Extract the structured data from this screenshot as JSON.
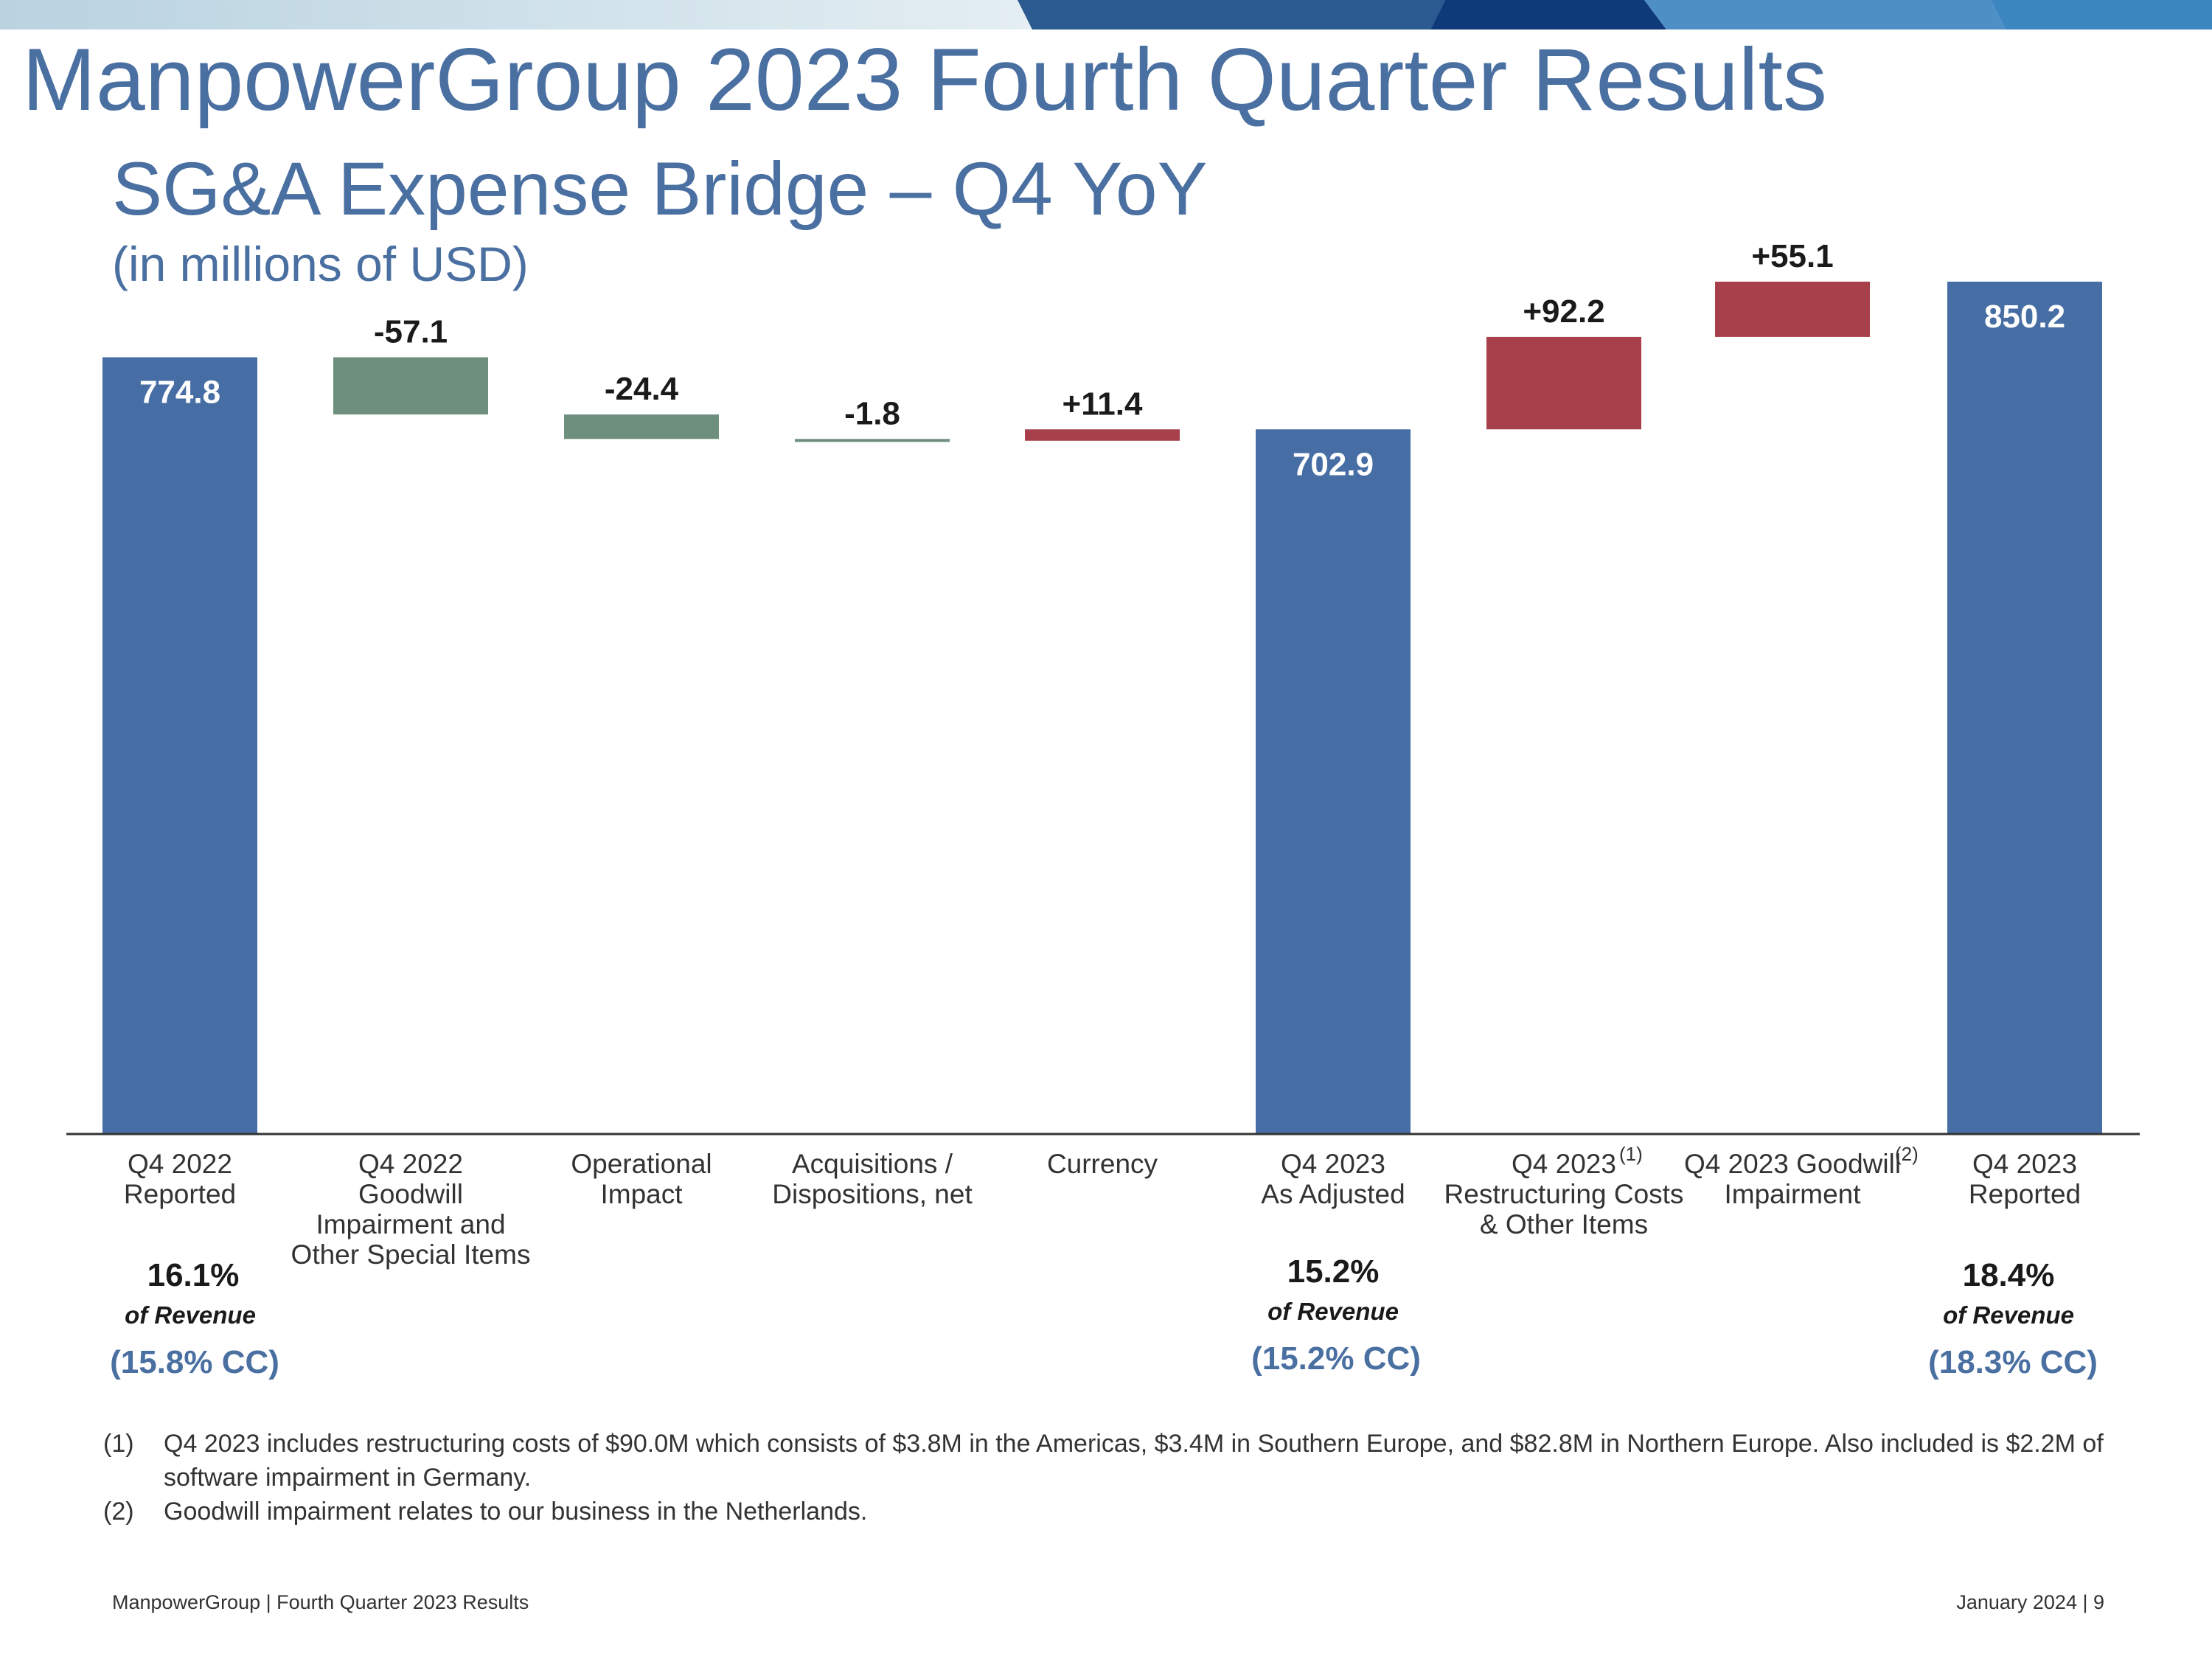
{
  "header": {
    "title": "ManpowerGroup 2023 Fourth Quarter Results",
    "subtitle": "SG&A Expense Bridge – Q4 YoY",
    "units": "(in millions of USD)"
  },
  "chart_data": {
    "type": "bar",
    "subtype": "waterfall",
    "categories": [
      "Q4 2022\nReported",
      "Q4 2022\nGoodwill\nImpairment and\nOther Special Items",
      "Operational\nImpact",
      "Acquisitions /\nDispositions, net",
      "Currency",
      "Q4 2023\nAs Adjusted",
      "Q4 2023\nRestructuring Costs\n& Other Items",
      "Q4 2023 Goodwill\nImpairment",
      "Q4 2023\nReported"
    ],
    "category_footnotes": [
      "",
      "",
      "",
      "",
      "",
      "",
      "(1)",
      "(2)",
      ""
    ],
    "values": [
      774.8,
      -57.1,
      -24.4,
      -1.8,
      11.4,
      702.9,
      92.2,
      55.1,
      850.2
    ],
    "value_labels": [
      "774.8",
      "-57.1",
      "-24.4",
      "-1.8",
      "+11.4",
      "702.9",
      "+92.2",
      "+55.1",
      "850.2"
    ],
    "kinds": [
      "total",
      "decrease",
      "decrease",
      "decrease",
      "increase",
      "total",
      "increase",
      "increase",
      "total"
    ],
    "colors": {
      "total": "#476ea4",
      "decrease": "#6e8e7e",
      "increase": "#a8404b"
    },
    "ylim": [
      0,
      850.2
    ],
    "grid": false,
    "legend": "none"
  },
  "revenue_notes": [
    {
      "category_index": 0,
      "percent": "16.1%",
      "label": "of Revenue",
      "cc": "(15.8% CC)"
    },
    {
      "category_index": 5,
      "percent": "15.2%",
      "label": "of Revenue",
      "cc": "(15.2% CC)"
    },
    {
      "category_index": 8,
      "percent": "18.4%",
      "label": "of Revenue",
      "cc": "(18.3% CC)"
    }
  ],
  "footnotes": [
    {
      "num": "(1)",
      "text": "Q4 2023 includes restructuring costs of $90.0M which consists of $3.8M in the Americas, $3.4M in Southern Europe, and $82.8M in Northern Europe. Also included is $2.2M of software impairment in Germany."
    },
    {
      "num": "(2)",
      "text": "Goodwill impairment relates to our business in the Netherlands."
    }
  ],
  "footer": {
    "left": "ManpowerGroup  |  Fourth Quarter 2023 Results",
    "right": "January 2024   |   9"
  }
}
